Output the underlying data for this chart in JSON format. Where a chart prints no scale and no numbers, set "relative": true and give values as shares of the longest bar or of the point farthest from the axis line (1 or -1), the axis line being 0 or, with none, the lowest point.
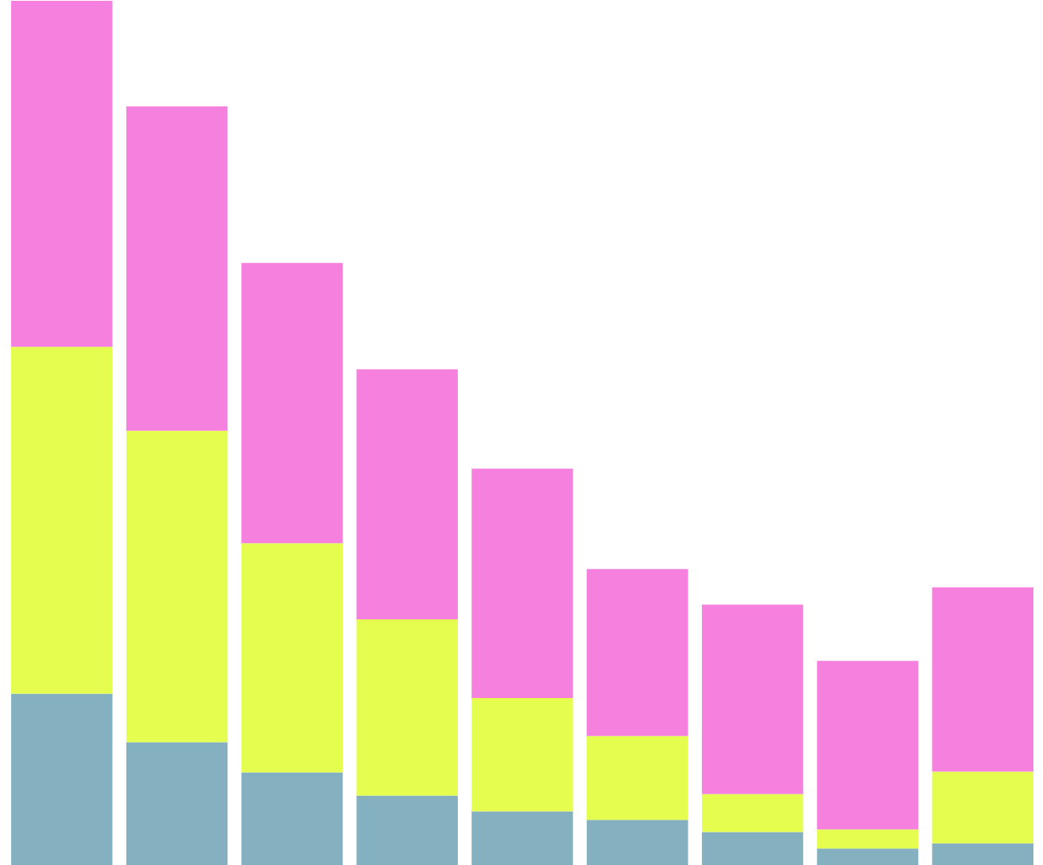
{
  "chart_data": {
    "type": "bar",
    "stacked": true,
    "relative": true,
    "categories": [
      null,
      null,
      null,
      null,
      null,
      null,
      null,
      null,
      null
    ],
    "series": [
      {
        "color": "#85b0bf",
        "values": [
          0.199,
          0.143,
          0.108,
          0.081,
          0.063,
          0.053,
          0.039,
          0.02,
          0.026
        ]
      },
      {
        "color": "#e4fd4f",
        "values": [
          0.401,
          0.36,
          0.265,
          0.204,
          0.131,
          0.097,
          0.044,
          0.022,
          0.083
        ]
      },
      {
        "color": "#f580de",
        "values": [
          0.4,
          0.375,
          0.324,
          0.289,
          0.265,
          0.193,
          0.219,
          0.195,
          0.213
        ]
      }
    ]
  }
}
